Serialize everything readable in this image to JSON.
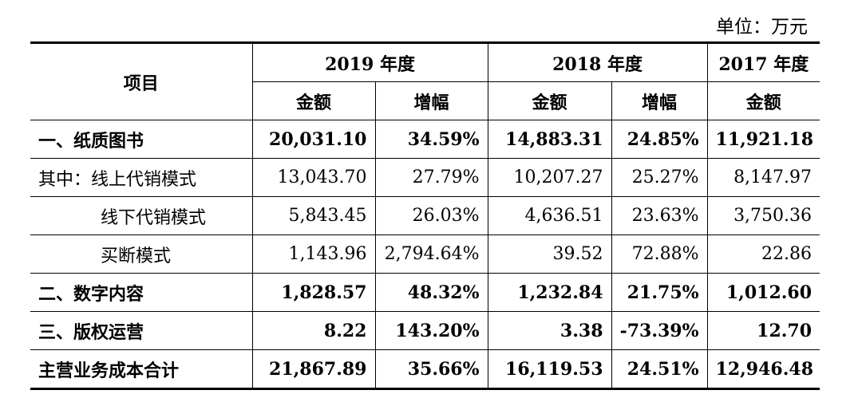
{
  "unit_label": "单位：万元",
  "header": {
    "item": "项目",
    "years": [
      "2019 年度",
      "2018 年度",
      "2017 年度"
    ],
    "amount": "金额",
    "growth": "增幅"
  },
  "rows": [
    {
      "label": "一、纸质图书",
      "v2019": "20,031.10",
      "g2019": "34.59%",
      "v2018": "14,883.31",
      "g2018": "24.85%",
      "v2017": "11,921.18"
    },
    {
      "label": "其中：线上代销模式",
      "v2019": "13,043.70",
      "g2019": "27.79%",
      "v2018": "10,207.27",
      "g2018": "25.27%",
      "v2017": "8,147.97"
    },
    {
      "label": "线下代销模式",
      "v2019": "5,843.45",
      "g2019": "26.03%",
      "v2018": "4,636.51",
      "g2018": "23.63%",
      "v2017": "3,750.36"
    },
    {
      "label": "买断模式",
      "v2019": "1,143.96",
      "g2019": "2,794.64%",
      "v2018": "39.52",
      "g2018": "72.88%",
      "v2017": "22.86"
    },
    {
      "label": "二、数字内容",
      "v2019": "1,828.57",
      "g2019": "48.32%",
      "v2018": "1,232.84",
      "g2018": "21.75%",
      "v2017": "1,012.60"
    },
    {
      "label": "三、版权运营",
      "v2019": "8.22",
      "g2019": "143.20%",
      "v2018": "3.38",
      "g2018": "-73.39%",
      "v2017": "12.70"
    },
    {
      "label": "主营业务成本合计",
      "v2019": "21,867.89",
      "g2019": "35.66%",
      "v2018": "16,119.53",
      "g2018": "24.51%",
      "v2017": "12,946.48"
    }
  ]
}
